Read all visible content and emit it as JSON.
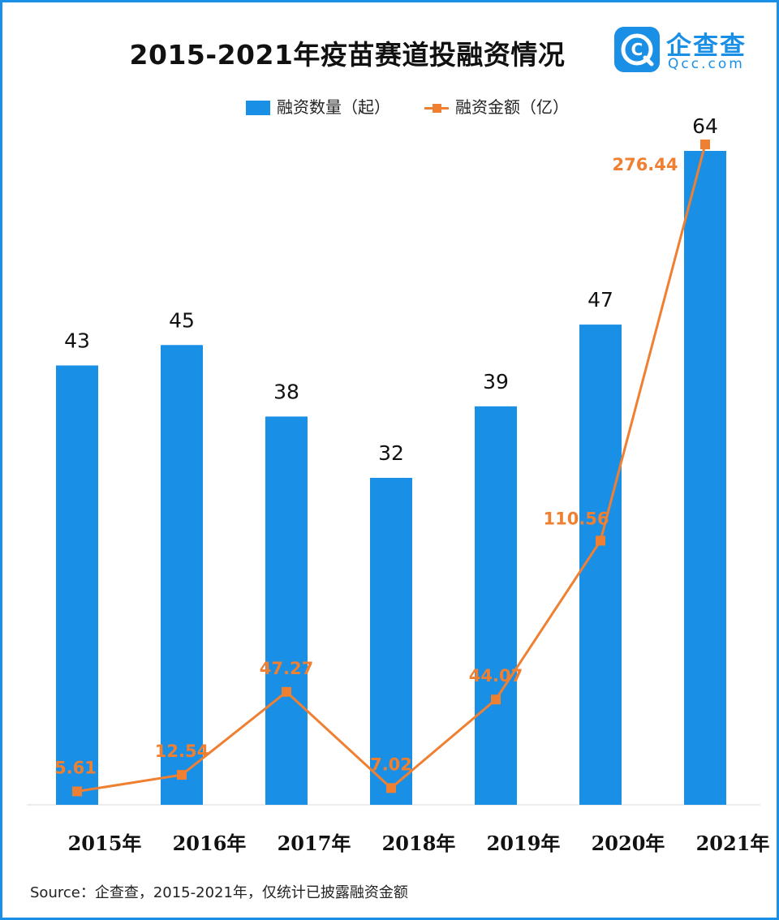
{
  "header": {
    "title": "2015-2021年疫苗赛道投融资情况"
  },
  "logo": {
    "name": "企查查",
    "domain": "Qcc.com",
    "brand_color": "#1a8fe6"
  },
  "legend": {
    "bar_label": "融资数量（起）",
    "line_label": "融资金额（亿）"
  },
  "chart_data": {
    "type": "bar",
    "title": "2015-2021年疫苗赛道投融资情况",
    "categories": [
      "2015年",
      "2016年",
      "2017年",
      "2018年",
      "2019年",
      "2020年",
      "2021年"
    ],
    "series": [
      {
        "name": "融资数量（起）",
        "type": "bar",
        "color": "#1a8fe6",
        "values": [
          43,
          45,
          38,
          32,
          39,
          47,
          64
        ],
        "labels": [
          "43",
          "45",
          "38",
          "32",
          "39",
          "47",
          "64"
        ]
      },
      {
        "name": "融资金额（亿）",
        "type": "line",
        "color": "#ef7f31",
        "values": [
          5.61,
          12.54,
          47.27,
          7.02,
          44.07,
          110.56,
          276.44
        ],
        "labels": [
          "5.61",
          "12.54",
          "47.27",
          "7.02",
          "44.07",
          "110.56",
          "276.44"
        ]
      }
    ],
    "xlabel": "",
    "ylabel": "",
    "grid": false,
    "legend_position": "top-center"
  },
  "footer": {
    "source": "Source：企查查，2015-2021年，仅统计已披露融资金额"
  }
}
